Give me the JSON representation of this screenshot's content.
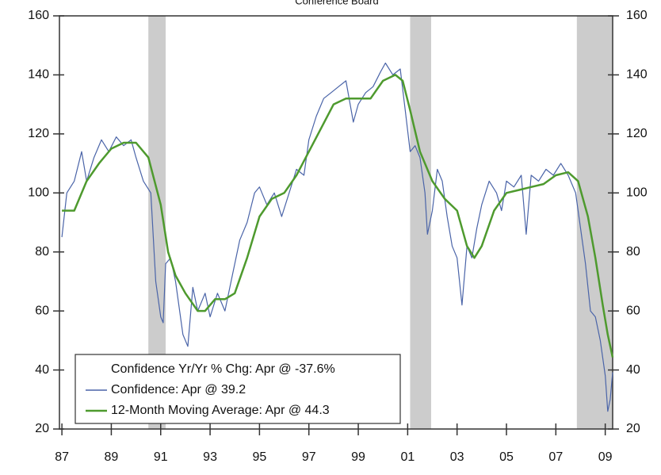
{
  "chart_data": {
    "type": "line",
    "subtitle": "Conference Board",
    "legend_title": "Confidence Yr/Yr % Chg: Apr @ -37.6%",
    "xlim": [
      1986.9,
      2009.3
    ],
    "xticks": [
      {
        "value": 1987,
        "label": "87"
      },
      {
        "value": 1989,
        "label": "89"
      },
      {
        "value": 1991,
        "label": "91"
      },
      {
        "value": 1993,
        "label": "93"
      },
      {
        "value": 1995,
        "label": "95"
      },
      {
        "value": 1997,
        "label": "97"
      },
      {
        "value": 1999,
        "label": "99"
      },
      {
        "value": 2001,
        "label": "01"
      },
      {
        "value": 2003,
        "label": "03"
      },
      {
        "value": 2005,
        "label": "05"
      },
      {
        "value": 2007,
        "label": "07"
      },
      {
        "value": 2009,
        "label": "09"
      }
    ],
    "ylim": [
      20,
      160
    ],
    "yticks": [
      20,
      40,
      60,
      80,
      100,
      120,
      140,
      160
    ],
    "y2lim": [
      20,
      160
    ],
    "y2ticks": [
      20,
      40,
      60,
      80,
      100,
      120,
      140,
      160
    ],
    "shaded_regions": [
      [
        1990.5,
        1991.2
      ],
      [
        2001.1,
        2001.95
      ],
      [
        2007.85,
        2009.3
      ]
    ],
    "shade_color": "#cccccc",
    "series": [
      {
        "name": "Confidence: Apr @ 39.2",
        "color": "#4a64a8",
        "x": [
          1987.0,
          1987.2,
          1987.5,
          1987.8,
          1988.0,
          1988.3,
          1988.6,
          1988.9,
          1989.2,
          1989.5,
          1989.8,
          1990.0,
          1990.3,
          1990.6,
          1990.8,
          1991.0,
          1991.1,
          1991.2,
          1991.4,
          1991.6,
          1991.9,
          1992.1,
          1992.3,
          1992.5,
          1992.8,
          1993.0,
          1993.3,
          1993.6,
          1993.9,
          1994.2,
          1994.5,
          1994.8,
          1995.0,
          1995.3,
          1995.6,
          1995.9,
          1996.2,
          1996.5,
          1996.8,
          1997.0,
          1997.3,
          1997.6,
          1997.9,
          1998.2,
          1998.5,
          1998.8,
          1999.0,
          1999.3,
          1999.6,
          1999.9,
          2000.1,
          2000.4,
          2000.7,
          2000.9,
          2001.1,
          2001.3,
          2001.5,
          2001.7,
          2001.8,
          2002.0,
          2002.2,
          2002.4,
          2002.6,
          2002.8,
          2003.0,
          2003.2,
          2003.4,
          2003.6,
          2003.8,
          2004.0,
          2004.3,
          2004.6,
          2004.8,
          2005.0,
          2005.3,
          2005.6,
          2005.8,
          2006.0,
          2006.3,
          2006.6,
          2006.9,
          2007.2,
          2007.5,
          2007.8,
          2008.0,
          2008.2,
          2008.4,
          2008.6,
          2008.8,
          2009.0,
          2009.1,
          2009.2,
          2009.3
        ],
        "values": [
          85,
          100,
          104,
          114,
          104,
          112,
          118,
          114,
          119,
          116,
          118,
          112,
          104,
          100,
          70,
          58,
          56,
          76,
          78,
          70,
          52,
          48,
          68,
          60,
          66,
          58,
          66,
          60,
          72,
          84,
          90,
          100,
          102,
          96,
          100,
          92,
          100,
          108,
          106,
          118,
          126,
          132,
          134,
          136,
          138,
          124,
          130,
          134,
          136,
          141,
          144,
          140,
          142,
          128,
          114,
          116,
          112,
          100,
          86,
          94,
          108,
          104,
          92,
          82,
          78,
          62,
          82,
          78,
          88,
          96,
          104,
          100,
          94,
          104,
          102,
          106,
          86,
          106,
          104,
          108,
          106,
          110,
          106,
          100,
          88,
          76,
          60,
          58,
          50,
          38,
          26,
          30,
          39.2
        ]
      },
      {
        "name": "12-Month Moving Average: Apr @ 44.3",
        "color": "#4e9a2e",
        "x": [
          1987.0,
          1987.5,
          1988.0,
          1988.5,
          1989.0,
          1989.5,
          1990.0,
          1990.5,
          1991.0,
          1991.3,
          1991.6,
          1992.0,
          1992.5,
          1992.8,
          1993.2,
          1993.6,
          1994.0,
          1994.5,
          1995.0,
          1995.5,
          1996.0,
          1996.5,
          1997.0,
          1997.5,
          1998.0,
          1998.5,
          1999.0,
          1999.5,
          2000.0,
          2000.5,
          2000.8,
          2001.1,
          2001.5,
          2002.0,
          2002.5,
          2003.0,
          2003.4,
          2003.7,
          2004.0,
          2004.5,
          2005.0,
          2005.5,
          2006.0,
          2006.5,
          2007.0,
          2007.5,
          2007.9,
          2008.3,
          2008.6,
          2008.9,
          2009.1,
          2009.3
        ],
        "values": [
          94,
          94,
          104,
          110,
          115,
          117,
          117,
          112,
          96,
          80,
          72,
          66,
          60,
          60,
          64,
          64,
          66,
          78,
          92,
          98,
          100,
          106,
          114,
          122,
          130,
          132,
          132,
          132,
          138,
          140,
          138,
          128,
          114,
          104,
          98,
          94,
          82,
          78,
          82,
          94,
          100,
          101,
          102,
          103,
          106,
          107,
          104,
          92,
          78,
          62,
          52,
          44.3
        ]
      }
    ]
  }
}
